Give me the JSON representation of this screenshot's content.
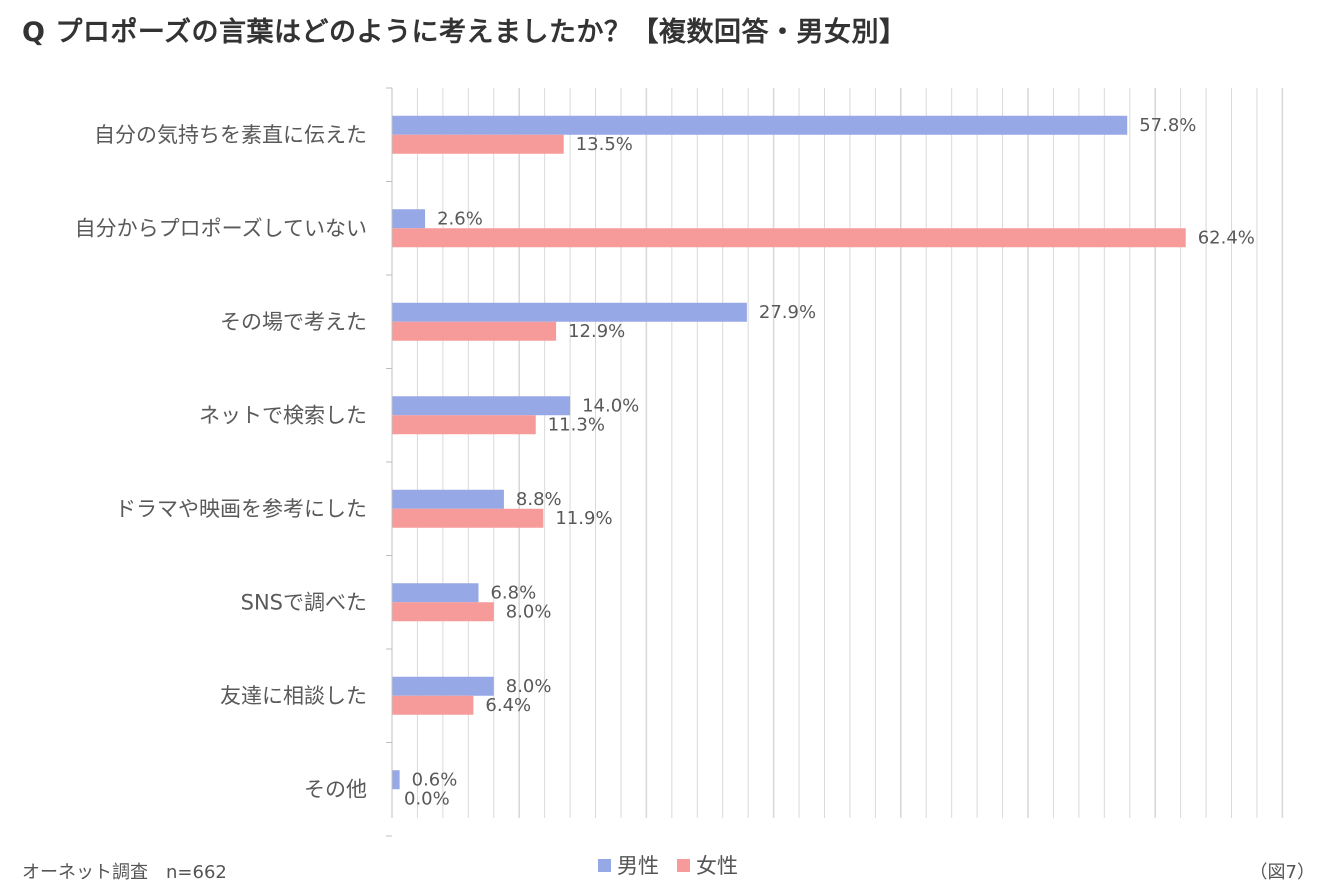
{
  "title": "Q プロポーズの言葉はどのように考えましたか？【複数回答・男女別】",
  "source": "オーネット調査　n=662",
  "figure_number": "（図7）",
  "colors": {
    "男性": "#97A8E6",
    "女性": "#F79A9A",
    "grid": "#D9D9D9",
    "axis": "#BFBFBF"
  },
  "chart_data": {
    "type": "bar",
    "orientation": "horizontal",
    "title": "Q プロポーズの言葉はどのように考えましたか？【複数回答・男女別】",
    "categories": [
      "自分の気持ちを素直に伝えた",
      "自分からプロポーズしていない",
      "その場で考えた",
      "ネットで検索した",
      "ドラマや映画を参考にした",
      "SNSで調べた",
      "友達に相談した",
      "その他"
    ],
    "series": [
      {
        "name": "男性",
        "values": [
          57.8,
          2.6,
          27.9,
          14.0,
          8.8,
          6.8,
          8.0,
          0.6
        ],
        "labels": [
          "57.8%",
          "2.6%",
          "27.9%",
          "14.0%",
          "8.8%",
          "6.8%",
          "8.0%",
          "0.6%"
        ]
      },
      {
        "name": "女性",
        "values": [
          13.5,
          62.4,
          12.9,
          11.3,
          11.9,
          8.0,
          6.4,
          0.0
        ],
        "labels": [
          "13.5%",
          "62.4%",
          "12.9%",
          "11.3%",
          "11.9%",
          "8.0%",
          "6.4%",
          "0.0%"
        ]
      }
    ],
    "xlim": [
      0,
      70
    ],
    "major_gridline_step": 10,
    "minor_gridline_step": 2,
    "legend_position": "bottom",
    "grid": true
  }
}
